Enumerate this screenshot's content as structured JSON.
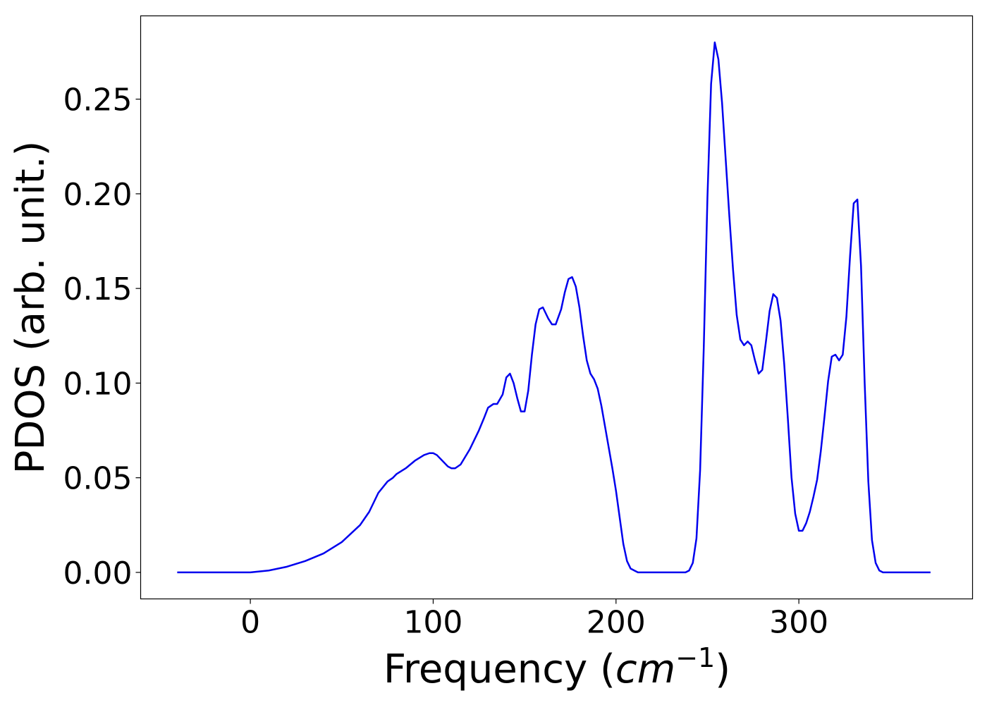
{
  "chart_data": {
    "type": "line",
    "title": "",
    "xlabel": "Frequency (cm⁻¹)",
    "xlabel_parts": {
      "prefix": "Frequency (",
      "unit_base": "cm",
      "unit_exponent": "−1",
      "suffix": ")"
    },
    "ylabel": "PDOS (arb. unit.)",
    "xlim": [
      -60,
      395
    ],
    "ylim": [
      -0.014,
      0.294
    ],
    "grid": false,
    "legend": "none",
    "x_ticks": [
      {
        "value": 0,
        "label": "0"
      },
      {
        "value": 100,
        "label": "100"
      },
      {
        "value": 200,
        "label": "200"
      },
      {
        "value": 300,
        "label": "300"
      }
    ],
    "y_ticks": [
      {
        "value": 0.0,
        "label": "0.00"
      },
      {
        "value": 0.05,
        "label": "0.05"
      },
      {
        "value": 0.1,
        "label": "0.10"
      },
      {
        "value": 0.15,
        "label": "0.15"
      },
      {
        "value": 0.2,
        "label": "0.20"
      },
      {
        "value": 0.25,
        "label": "0.25"
      }
    ],
    "series": [
      {
        "color": "#0000ee",
        "x": [
          -40,
          0,
          10,
          20,
          30,
          40,
          50,
          60,
          65,
          70,
          75,
          78,
          80,
          85,
          90,
          95,
          98,
          100,
          102,
          105,
          108,
          110,
          112,
          115,
          120,
          125,
          128,
          130,
          133,
          135,
          138,
          140,
          142,
          144,
          146,
          148,
          150,
          152,
          154,
          156,
          158,
          160,
          163,
          165,
          167,
          170,
          172,
          174,
          176,
          178,
          180,
          182,
          184,
          186,
          188,
          190,
          192,
          194,
          196,
          198,
          200,
          202,
          204,
          206,
          208,
          210,
          212,
          215,
          220,
          230,
          236,
          238,
          240,
          242,
          244,
          246,
          248,
          250,
          252,
          254,
          256,
          258,
          260,
          262,
          264,
          266,
          268,
          270,
          272,
          274,
          276,
          278,
          280,
          282,
          284,
          286,
          288,
          290,
          292,
          294,
          296,
          298,
          300,
          302,
          304,
          306,
          308,
          310,
          312,
          314,
          316,
          318,
          320,
          322,
          324,
          326,
          328,
          330,
          332,
          334,
          336,
          338,
          340,
          342,
          344,
          346,
          348,
          350,
          355,
          360,
          372
        ],
        "y": [
          0.0,
          0.0,
          0.001,
          0.003,
          0.006,
          0.01,
          0.016,
          0.025,
          0.032,
          0.042,
          0.048,
          0.05,
          0.052,
          0.055,
          0.059,
          0.062,
          0.063,
          0.063,
          0.062,
          0.059,
          0.056,
          0.055,
          0.055,
          0.057,
          0.065,
          0.075,
          0.082,
          0.087,
          0.089,
          0.089,
          0.094,
          0.103,
          0.105,
          0.1,
          0.092,
          0.085,
          0.085,
          0.096,
          0.115,
          0.131,
          0.139,
          0.14,
          0.134,
          0.131,
          0.131,
          0.139,
          0.148,
          0.155,
          0.156,
          0.151,
          0.14,
          0.125,
          0.112,
          0.105,
          0.102,
          0.097,
          0.088,
          0.077,
          0.066,
          0.055,
          0.043,
          0.029,
          0.015,
          0.006,
          0.002,
          0.001,
          0.0,
          0.0,
          0.0,
          0.0,
          0.0,
          0.0,
          0.001,
          0.005,
          0.018,
          0.054,
          0.119,
          0.198,
          0.258,
          0.28,
          0.271,
          0.248,
          0.218,
          0.188,
          0.16,
          0.136,
          0.123,
          0.12,
          0.122,
          0.12,
          0.112,
          0.105,
          0.107,
          0.122,
          0.138,
          0.147,
          0.145,
          0.133,
          0.11,
          0.081,
          0.05,
          0.031,
          0.022,
          0.022,
          0.026,
          0.032,
          0.04,
          0.049,
          0.064,
          0.082,
          0.101,
          0.114,
          0.115,
          0.112,
          0.115,
          0.135,
          0.167,
          0.195,
          0.197,
          0.162,
          0.1,
          0.048,
          0.017,
          0.005,
          0.001,
          0.0,
          0.0,
          0.0,
          0.0,
          0.0,
          0.0
        ]
      }
    ]
  }
}
